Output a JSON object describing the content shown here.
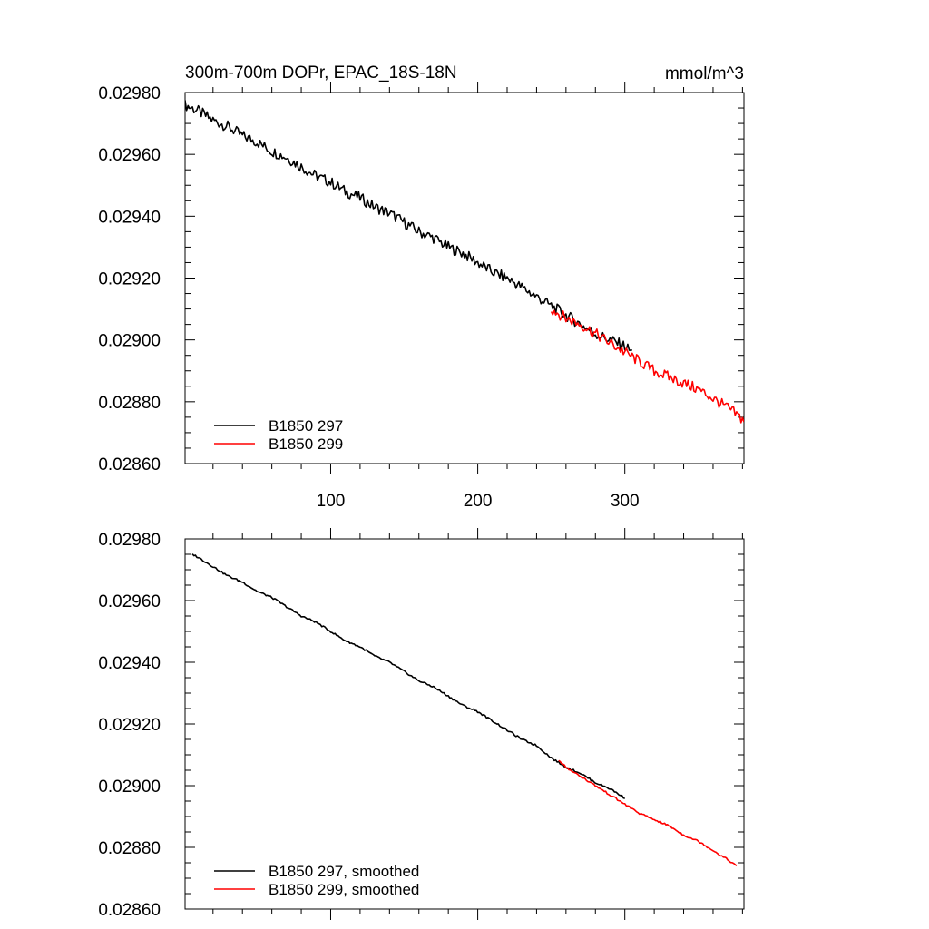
{
  "figure": {
    "title_left": "300m-700m DOPr, EPAC_18S-18N",
    "title_right": "mmol/m^3"
  },
  "chart_data": [
    {
      "type": "line",
      "panel": "top",
      "xlim": [
        1,
        381
      ],
      "ylim": [
        0.0286,
        0.0298
      ],
      "x_ticks": [
        100,
        200,
        300
      ],
      "x_tick_labels": [
        "100",
        "200",
        "300"
      ],
      "y_ticks": [
        0.0286,
        0.0288,
        0.029,
        0.0292,
        0.0294,
        0.0296,
        0.0298
      ],
      "y_tick_labels": [
        "0.02860",
        "0.02880",
        "0.02900",
        "0.02920",
        "0.02940",
        "0.02960",
        "0.02980"
      ],
      "grid": false,
      "legend_position": "bottom-left",
      "series": [
        {
          "name": "B1850 297",
          "color": "#000000",
          "smoothed": false,
          "x": [
            1,
            10,
            20,
            30,
            40,
            50,
            60,
            70,
            80,
            90,
            100,
            110,
            120,
            130,
            140,
            150,
            160,
            170,
            180,
            190,
            200,
            210,
            220,
            230,
            240,
            250,
            260,
            270,
            280,
            290,
            300,
            305
          ],
          "y": [
            0.02976,
            0.02974,
            0.02971,
            0.02969,
            0.02966,
            0.02964,
            0.02961,
            0.02959,
            0.02956,
            0.02953,
            0.02951,
            0.02948,
            0.02946,
            0.02943,
            0.02941,
            0.02938,
            0.02935,
            0.02933,
            0.0293,
            0.02928,
            0.02925,
            0.02922,
            0.0292,
            0.02917,
            0.02914,
            0.02911,
            0.02908,
            0.02905,
            0.02902,
            0.029,
            0.02898,
            0.02896
          ]
        },
        {
          "name": "B1850 299",
          "color": "#ff0000",
          "smoothed": false,
          "x": [
            250,
            260,
            270,
            280,
            290,
            300,
            310,
            320,
            330,
            340,
            350,
            360,
            370,
            381
          ],
          "y": [
            0.0291,
            0.02907,
            0.02905,
            0.02902,
            0.02899,
            0.02896,
            0.02893,
            0.0289,
            0.02888,
            0.02886,
            0.02884,
            0.02881,
            0.02878,
            0.02874
          ]
        }
      ]
    },
    {
      "type": "line",
      "panel": "bottom",
      "xlim": [
        1,
        381
      ],
      "ylim": [
        0.0286,
        0.0298
      ],
      "x_ticks": [
        100,
        200,
        300
      ],
      "y_ticks": [
        0.0286,
        0.0288,
        0.029,
        0.0292,
        0.0294,
        0.0296,
        0.0298
      ],
      "y_tick_labels": [
        "0.02860",
        "0.02880",
        "0.02900",
        "0.02920",
        "0.02940",
        "0.02960",
        "0.02980"
      ],
      "grid": false,
      "legend_position": "bottom-left",
      "series": [
        {
          "name": "B1850 297, smoothed",
          "color": "#000000",
          "smoothed": true,
          "x": [
            6,
            10,
            20,
            30,
            40,
            50,
            60,
            70,
            80,
            90,
            100,
            110,
            120,
            130,
            140,
            150,
            160,
            170,
            180,
            190,
            200,
            210,
            220,
            230,
            240,
            250,
            260,
            270,
            280,
            290,
            300
          ],
          "y": [
            0.02975,
            0.02974,
            0.02971,
            0.02968,
            0.02966,
            0.02963,
            0.02961,
            0.02958,
            0.02955,
            0.02953,
            0.0295,
            0.02947,
            0.02945,
            0.02942,
            0.0294,
            0.02937,
            0.02934,
            0.02932,
            0.02929,
            0.02926,
            0.02924,
            0.02921,
            0.02918,
            0.02915,
            0.02913,
            0.02909,
            0.02906,
            0.02904,
            0.02901,
            0.02899,
            0.02896
          ]
        },
        {
          "name": "B1850 299, smoothed",
          "color": "#ff0000",
          "smoothed": true,
          "x": [
            255,
            260,
            270,
            280,
            290,
            300,
            310,
            320,
            330,
            340,
            350,
            360,
            370,
            376
          ],
          "y": [
            0.02908,
            0.02906,
            0.02903,
            0.029,
            0.02897,
            0.02894,
            0.02891,
            0.02889,
            0.02887,
            0.02884,
            0.02882,
            0.02879,
            0.02876,
            0.02874
          ]
        }
      ]
    }
  ]
}
